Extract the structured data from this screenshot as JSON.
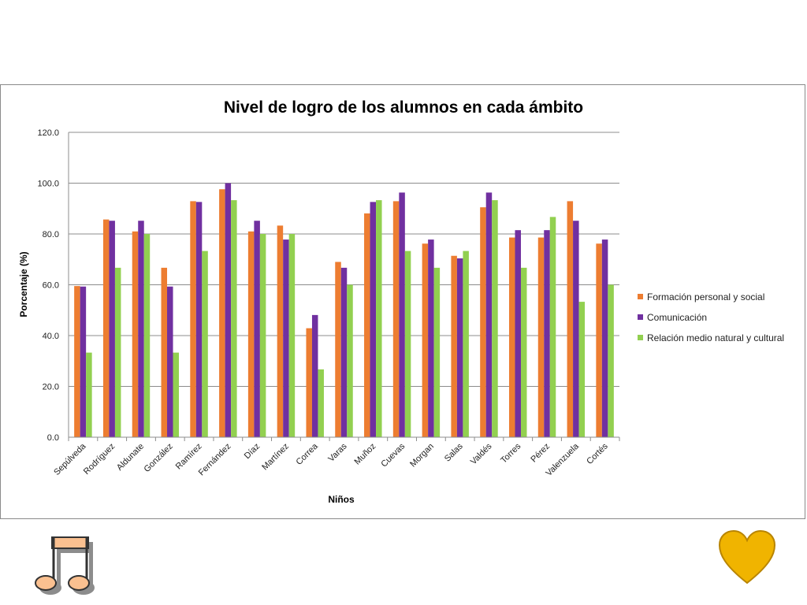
{
  "chart_data": {
    "type": "bar",
    "title": "Nivel de logro de los alumnos en cada ámbito",
    "xlabel": "Niños",
    "ylabel": "Porcentaje (%)",
    "ylim": [
      0,
      120
    ],
    "yticks": [
      "0.0",
      "20.0",
      "40.0",
      "60.0",
      "80.0",
      "100.0",
      "120.0"
    ],
    "grid": true,
    "legend_position": "right",
    "categories": [
      "Sepúlveda",
      "Rodríguez",
      "Aldunate",
      "González",
      "Ramírez",
      "Fernández",
      "Díaz",
      "Martínez",
      "Correa",
      "Varas",
      "Muñoz",
      "Cuevas",
      "Morgan",
      "Salas",
      "Valdés",
      "Torres",
      "Pérez",
      "Valenzuela",
      "Cortés"
    ],
    "series": [
      {
        "name": "Formación personal y social",
        "color": "#ed7d31",
        "values": [
          59.5,
          85.7,
          81.0,
          66.7,
          92.9,
          97.6,
          81.0,
          83.3,
          42.9,
          69.0,
          88.1,
          92.9,
          76.2,
          71.4,
          90.5,
          78.6,
          78.6,
          92.9,
          76.2
        ]
      },
      {
        "name": "Comunicación",
        "color": "#7030a0",
        "values": [
          59.3,
          85.2,
          85.2,
          59.3,
          92.6,
          100.0,
          85.2,
          77.8,
          48.1,
          66.7,
          92.6,
          96.3,
          77.8,
          70.4,
          96.3,
          81.5,
          81.5,
          85.2,
          77.8
        ]
      },
      {
        "name": "Relación medio natural y cultural",
        "color": "#92d050",
        "values": [
          33.3,
          66.7,
          80.0,
          33.3,
          73.3,
          93.3,
          80.0,
          80.0,
          26.7,
          60.0,
          93.3,
          73.3,
          66.7,
          73.3,
          93.3,
          66.7,
          86.7,
          53.3,
          60.0
        ]
      }
    ]
  },
  "icons": {
    "music": "music-note-icon",
    "heart": "heart-icon",
    "heart_color": "#f0b400"
  }
}
